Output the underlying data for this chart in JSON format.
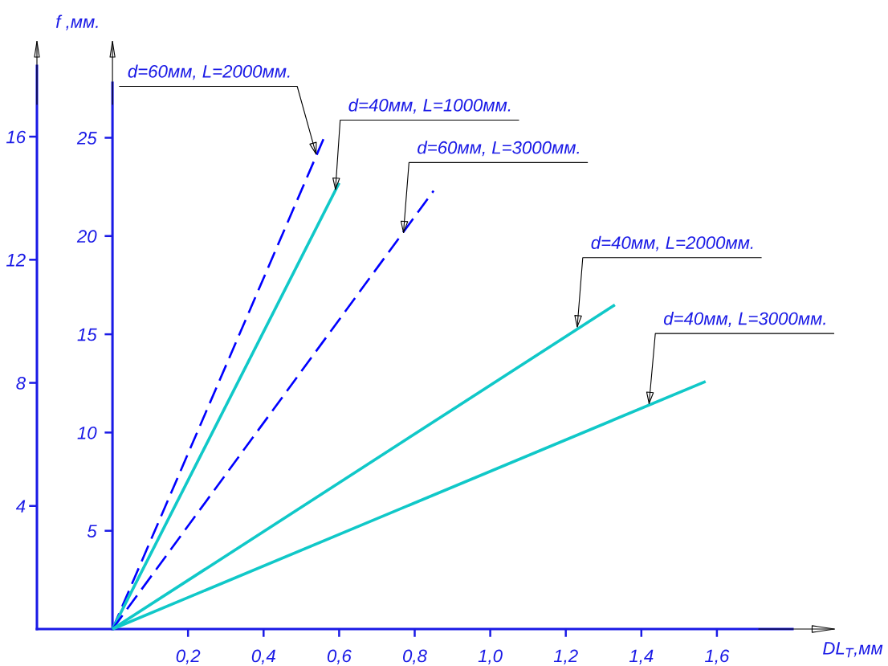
{
  "chart_data": {
    "type": "line",
    "xlabel": "DL$_{T}$,мм",
    "ylabel": "f ,мм.",
    "xlim": [
      -0.2,
      1.8
    ],
    "xticks": [
      {
        "value": 0.2,
        "label": "0,2"
      },
      {
        "value": 0.4,
        "label": "0,4"
      },
      {
        "value": 0.6,
        "label": "0,6"
      },
      {
        "value": 0.8,
        "label": "0,8"
      },
      {
        "value": 1.0,
        "label": "1,0"
      },
      {
        "value": 1.2,
        "label": "1,2"
      },
      {
        "value": 1.4,
        "label": "1,4"
      },
      {
        "value": 1.6,
        "label": "1,6"
      }
    ],
    "ylim": [
      0,
      27.8
    ],
    "yticks": [
      5,
      10,
      15,
      20,
      25
    ],
    "y2lim": [
      0,
      18.3
    ],
    "y2ticks": [
      4,
      8,
      12,
      16
    ],
    "series": [
      {
        "color": "#0000ff",
        "line_style": "dashed",
        "x": [
          0,
          0.56
        ],
        "values": [
          0,
          25
        ]
      },
      {
        "color": "#10c8c8",
        "line_style": "solid",
        "x": [
          0,
          0.6
        ],
        "values": [
          0,
          22.7
        ]
      },
      {
        "color": "#0000ff",
        "line_style": "dashed",
        "x": [
          0,
          0.85
        ],
        "values": [
          0,
          22.3
        ]
      },
      {
        "color": "#10c8c8",
        "line_style": "solid",
        "x": [
          0,
          1.33
        ],
        "values": [
          0,
          16.5
        ]
      },
      {
        "color": "#10c8c8",
        "line_style": "solid",
        "x": [
          0,
          1.57
        ],
        "values": [
          0,
          12.6
        ]
      }
    ],
    "annotations": [
      {
        "text": "d=60мм, L=2000мм.",
        "x": 0.54,
        "y": 24.1
      },
      {
        "text": "d=40мм, L=1000мм.",
        "x": 0.59,
        "y": 22.3
      },
      {
        "text": "d=60мм, L=3000мм.",
        "x": 0.77,
        "y": 20.1
      },
      {
        "text": "d=40мм, L=2000мм.",
        "x": 1.23,
        "y": 15.3
      },
      {
        "text": "d=40мм, L=3000мм.",
        "x": 1.42,
        "y": 11.4
      }
    ]
  }
}
